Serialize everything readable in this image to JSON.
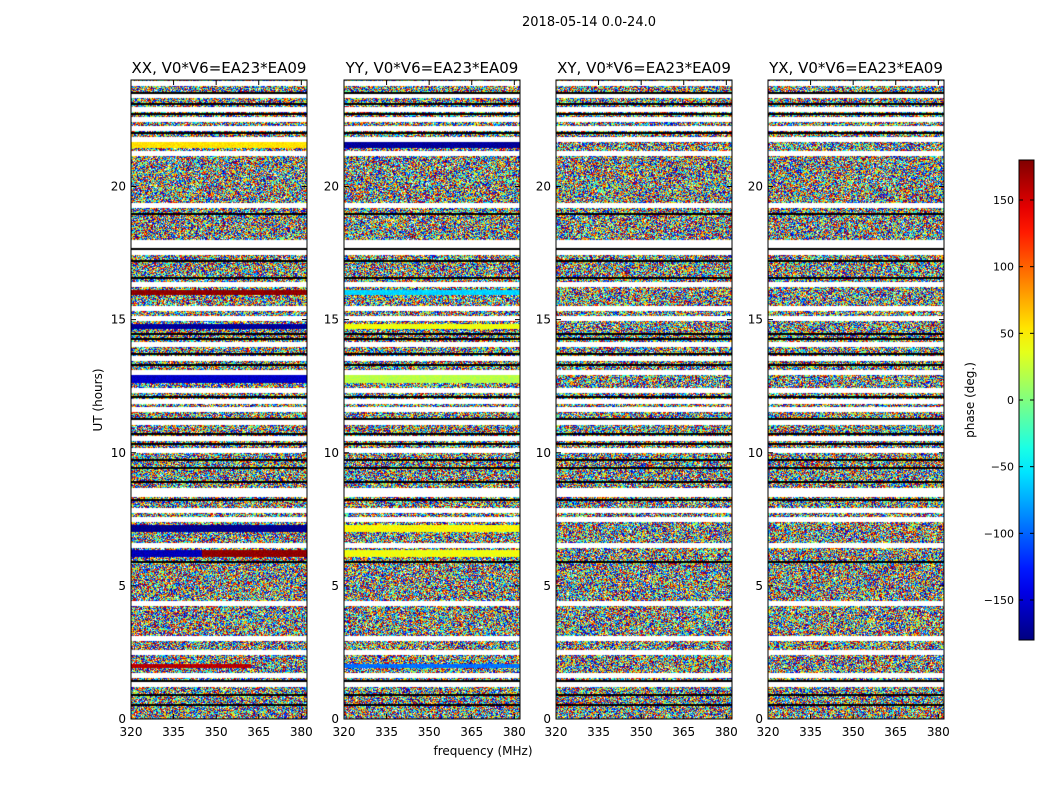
{
  "figure": {
    "suptitle": "2018-05-14 0.0-24.0"
  },
  "chart_data": {
    "type": "heatmap",
    "title": "2018-05-14 0.0-24.0",
    "xlabel": "frequency (MHz)",
    "ylabel": "UT (hours)",
    "xlim": [
      320,
      382
    ],
    "ylim": [
      0,
      24
    ],
    "xticks": [
      320,
      335,
      350,
      365,
      380
    ],
    "yticks": [
      0,
      5,
      10,
      15,
      20
    ],
    "panels": [
      {
        "title": "XX, V0*V6=EA23*EA09",
        "polarization": "XX",
        "features": [
          {
            "t0": 1.95,
            "t1": 2.1,
            "f0": 320,
            "f1": 362,
            "phase": 160
          },
          {
            "t0": 6.1,
            "t1": 6.35,
            "f0": 320,
            "f1": 345,
            "phase": -160
          },
          {
            "t0": 6.1,
            "t1": 6.35,
            "f0": 345,
            "f1": 382,
            "phase": 175
          },
          {
            "t0": 7.05,
            "t1": 7.3,
            "f0": 320,
            "f1": 382,
            "phase": -175
          },
          {
            "t0": 12.65,
            "t1": 12.95,
            "f0": 320,
            "f1": 382,
            "phase": -155
          },
          {
            "t0": 14.65,
            "t1": 14.85,
            "f0": 320,
            "f1": 382,
            "phase": -170
          },
          {
            "t0": 15.95,
            "t1": 16.15,
            "f0": 320,
            "f1": 382,
            "phase": 175
          },
          {
            "t0": 21.45,
            "t1": 21.7,
            "f0": 320,
            "f1": 382,
            "phase": 55
          }
        ]
      },
      {
        "title": "YY, V0*V6=EA23*EA09",
        "polarization": "YY",
        "features": [
          {
            "t0": 1.95,
            "t1": 2.1,
            "f0": 320,
            "f1": 382,
            "phase": -95
          },
          {
            "t0": 6.1,
            "t1": 6.35,
            "f0": 320,
            "f1": 382,
            "phase": 40
          },
          {
            "t0": 7.05,
            "t1": 7.3,
            "f0": 320,
            "f1": 382,
            "phase": 45
          },
          {
            "t0": 12.65,
            "t1": 12.95,
            "f0": 320,
            "f1": 382,
            "phase": 20
          },
          {
            "t0": 14.65,
            "t1": 14.85,
            "f0": 320,
            "f1": 382,
            "phase": 40
          },
          {
            "t0": 15.95,
            "t1": 16.15,
            "f0": 320,
            "f1": 382,
            "phase": -60
          },
          {
            "t0": 21.45,
            "t1": 21.7,
            "f0": 320,
            "f1": 382,
            "phase": -170
          }
        ]
      },
      {
        "title": "XY, V0*V6=EA23*EA09",
        "polarization": "XY",
        "features": []
      },
      {
        "title": "YX, V0*V6=EA23*EA09",
        "polarization": "YX",
        "features": []
      }
    ],
    "blank_rows": [
      1.3,
      1.65,
      2.5,
      3.05,
      4.35,
      6.55,
      7.5,
      7.85,
      8.45,
      8.6,
      10.1,
      10.55,
      11.15,
      11.65,
      11.95,
      12.35,
      13.05,
      13.55,
      14.1,
      15.05,
      15.45,
      16.35,
      17.55,
      17.75,
      17.9,
      19.3,
      21.25,
      21.8,
      22.2,
      22.55,
      22.9,
      23.45,
      23.9
    ],
    "flag_rows": [
      0.55,
      0.95,
      1.45,
      5.95,
      8.25,
      8.95,
      9.45,
      9.75,
      10.35,
      10.75,
      11.3,
      12.15,
      13.35,
      13.75,
      14.3,
      14.5,
      16.6,
      17.25,
      17.7,
      19.0,
      22.05,
      22.75,
      23.15,
      23.55
    ],
    "colorbar": {
      "label": "phase (deg.)",
      "range": [
        -180,
        180
      ],
      "ticks": [
        -150,
        -100,
        -50,
        0,
        50,
        100,
        150
      ],
      "tick_labels": [
        "−150",
        "−100",
        "−50",
        "0",
        "50",
        "100",
        "150"
      ],
      "cmap": "jet"
    }
  }
}
